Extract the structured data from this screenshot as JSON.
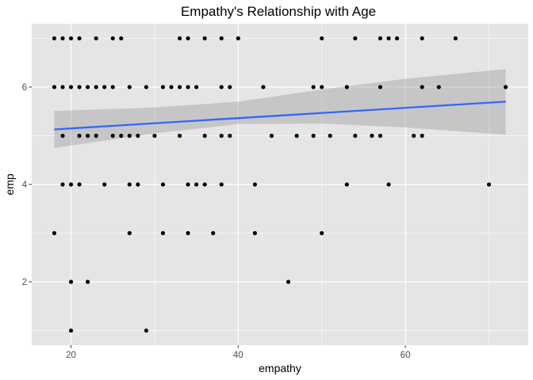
{
  "chart_data": {
    "type": "scatter",
    "title": "Empathy's Relationship with Age",
    "xlabel": "empathy",
    "ylabel": "emp",
    "xlim": [
      15.3,
      74.7
    ],
    "ylim": [
      0.7,
      7.3
    ],
    "x_ticks": [
      20,
      40,
      60
    ],
    "x_tick_labels": [
      "20",
      "40",
      "60"
    ],
    "y_ticks": [
      2,
      4,
      6
    ],
    "y_tick_labels": [
      "2",
      "4",
      "6"
    ],
    "x_minor_ticks": [
      30,
      50,
      70
    ],
    "y_minor_ticks": [
      1,
      3,
      5,
      7
    ],
    "grid": true,
    "colors": {
      "panel_background": "#e5e5e5",
      "grid": "#ffffff",
      "points": "#000000",
      "trend_line": "#3366ff",
      "confidence_band": "#999999"
    },
    "points": [
      [
        18,
        7
      ],
      [
        19,
        7
      ],
      [
        20,
        7
      ],
      [
        21,
        7
      ],
      [
        23,
        7
      ],
      [
        25,
        7
      ],
      [
        26,
        7
      ],
      [
        33,
        7
      ],
      [
        34,
        7
      ],
      [
        36,
        7
      ],
      [
        38,
        7
      ],
      [
        40,
        7
      ],
      [
        50,
        7
      ],
      [
        54,
        7
      ],
      [
        57,
        7
      ],
      [
        58,
        7
      ],
      [
        59,
        7
      ],
      [
        62,
        7
      ],
      [
        66,
        7
      ],
      [
        18,
        6
      ],
      [
        19,
        6
      ],
      [
        20,
        6
      ],
      [
        21,
        6
      ],
      [
        22,
        6
      ],
      [
        23,
        6
      ],
      [
        24,
        6
      ],
      [
        25,
        6
      ],
      [
        27,
        6
      ],
      [
        29,
        6
      ],
      [
        31,
        6
      ],
      [
        32,
        6
      ],
      [
        33,
        6
      ],
      [
        34,
        6
      ],
      [
        35,
        6
      ],
      [
        38,
        6
      ],
      [
        39,
        6
      ],
      [
        43,
        6
      ],
      [
        49,
        6
      ],
      [
        50,
        6
      ],
      [
        53,
        6
      ],
      [
        57,
        6
      ],
      [
        62,
        6
      ],
      [
        64,
        6
      ],
      [
        72,
        6
      ],
      [
        19,
        5
      ],
      [
        21,
        5
      ],
      [
        22,
        5
      ],
      [
        23,
        5
      ],
      [
        25,
        5
      ],
      [
        26,
        5
      ],
      [
        27,
        5
      ],
      [
        28,
        5
      ],
      [
        30,
        5
      ],
      [
        33,
        5
      ],
      [
        36,
        5
      ],
      [
        38,
        5
      ],
      [
        39,
        5
      ],
      [
        44,
        5
      ],
      [
        47,
        5
      ],
      [
        49,
        5
      ],
      [
        51,
        5
      ],
      [
        54,
        5
      ],
      [
        56,
        5
      ],
      [
        57,
        5
      ],
      [
        61,
        5
      ],
      [
        62,
        5
      ],
      [
        19,
        4
      ],
      [
        20,
        4
      ],
      [
        21,
        4
      ],
      [
        24,
        4
      ],
      [
        27,
        4
      ],
      [
        28,
        4
      ],
      [
        31,
        4
      ],
      [
        34,
        4
      ],
      [
        35,
        4
      ],
      [
        36,
        4
      ],
      [
        38,
        4
      ],
      [
        42,
        4
      ],
      [
        53,
        4
      ],
      [
        58,
        4
      ],
      [
        70,
        4
      ],
      [
        18,
        3
      ],
      [
        27,
        3
      ],
      [
        31,
        3
      ],
      [
        34,
        3
      ],
      [
        37,
        3
      ],
      [
        42,
        3
      ],
      [
        50,
        3
      ],
      [
        20,
        2
      ],
      [
        22,
        2
      ],
      [
        46,
        2
      ],
      [
        20,
        1
      ],
      [
        29,
        1
      ]
    ],
    "trend": {
      "method": "lm",
      "x_range": [
        18,
        72
      ],
      "y_range": [
        5.13,
        5.7
      ],
      "confidence_band": [
        {
          "x": 18,
          "lower": 4.75,
          "upper": 5.51
        },
        {
          "x": 30,
          "lower": 5.05,
          "upper": 5.58
        },
        {
          "x": 40,
          "lower": 5.24,
          "upper": 5.7
        },
        {
          "x": 50,
          "lower": 5.25,
          "upper": 5.95
        },
        {
          "x": 60,
          "lower": 5.17,
          "upper": 6.17
        },
        {
          "x": 72,
          "lower": 5.02,
          "upper": 6.37
        }
      ]
    }
  }
}
